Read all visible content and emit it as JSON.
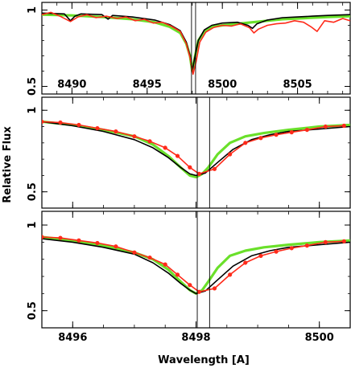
{
  "figure": {
    "ylabel": "Relative Flux",
    "xlabel": "Wavelength [A]"
  },
  "colors": {
    "black_series": "#000000",
    "red_series": "#ff2a1a",
    "green_series": "#6ae02a",
    "marker": "#ff2a1a",
    "guide_line": "#000000"
  },
  "chart_data": [
    {
      "type": "line",
      "panel": "top",
      "xlim": [
        8488.0,
        8508.5
      ],
      "ylim": [
        0.45,
        1.05
      ],
      "x_ticks": [
        8490,
        8495,
        8500,
        8505
      ],
      "x_tick_labels": [
        "8490",
        "8495",
        "8500",
        "8505"
      ],
      "x_tick_labels_inside": true,
      "y_ticks": [
        0.5,
        1
      ],
      "y_tick_labels": [
        "0.5",
        "1"
      ],
      "vlines": [
        8497.95,
        8498.22
      ],
      "series": [
        {
          "color_key": "green_series",
          "x": [
            8488.0,
            8490.0,
            8492.0,
            8494.0,
            8495.5,
            8496.5,
            8497.2,
            8497.6,
            8497.85,
            8498.0,
            8498.15,
            8498.4,
            8498.8,
            8499.3,
            8500.0,
            8501.0,
            8502.0,
            8503.0,
            8504.0,
            8505.0,
            8506.0,
            8507.0,
            8508.5
          ],
          "y": [
            0.97,
            0.965,
            0.955,
            0.94,
            0.92,
            0.89,
            0.85,
            0.78,
            0.7,
            0.6,
            0.68,
            0.8,
            0.86,
            0.89,
            0.9,
            0.91,
            0.92,
            0.93,
            0.94,
            0.945,
            0.95,
            0.955,
            0.96
          ]
        },
        {
          "color_key": "black_series",
          "x": [
            8488.0,
            8489.5,
            8489.9,
            8490.2,
            8490.6,
            8492.0,
            8492.4,
            8492.7,
            8494.0,
            8495.5,
            8496.5,
            8497.2,
            8497.6,
            8497.85,
            8498.0,
            8498.15,
            8498.4,
            8498.8,
            8499.3,
            8500.0,
            8501.0,
            8501.7,
            8502.0,
            8502.3,
            8503.0,
            8504.0,
            8505.0,
            8506.0,
            8507.0,
            8508.5
          ],
          "y": [
            0.98,
            0.975,
            0.93,
            0.96,
            0.975,
            0.97,
            0.94,
            0.965,
            0.955,
            0.935,
            0.905,
            0.865,
            0.79,
            0.7,
            0.6,
            0.68,
            0.8,
            0.87,
            0.9,
            0.915,
            0.92,
            0.9,
            0.88,
            0.91,
            0.935,
            0.95,
            0.955,
            0.96,
            0.965,
            0.97
          ]
        },
        {
          "color_key": "red_series",
          "x": [
            8488.0,
            8488.6,
            8489.2,
            8489.9,
            8490.4,
            8491.0,
            8491.6,
            8492.3,
            8493.0,
            8493.6,
            8494.2,
            8494.8,
            8495.4,
            8496.0,
            8496.6,
            8497.2,
            8497.6,
            8497.85,
            8498.05,
            8498.25,
            8498.5,
            8498.9,
            8499.4,
            8500.0,
            8500.6,
            8501.2,
            8501.8,
            8502.1,
            8502.4,
            8503.0,
            8503.6,
            8504.2,
            8504.8,
            8505.4,
            8505.9,
            8506.3,
            8506.8,
            8507.4,
            8508.0,
            8508.5
          ],
          "y": [
            0.97,
            0.985,
            0.96,
            0.925,
            0.955,
            0.97,
            0.95,
            0.96,
            0.945,
            0.955,
            0.93,
            0.94,
            0.915,
            0.92,
            0.895,
            0.86,
            0.78,
            0.69,
            0.58,
            0.66,
            0.79,
            0.855,
            0.885,
            0.9,
            0.895,
            0.91,
            0.885,
            0.85,
            0.875,
            0.9,
            0.91,
            0.915,
            0.93,
            0.92,
            0.89,
            0.86,
            0.93,
            0.92,
            0.945,
            0.93
          ]
        }
      ]
    },
    {
      "type": "line",
      "panel": "middle",
      "xlim": [
        8495.5,
        8500.5
      ],
      "ylim": [
        0.4,
        1.08
      ],
      "x_ticks": [
        8496,
        8498,
        8500
      ],
      "y_ticks": [
        0.5,
        1
      ],
      "y_tick_labels": [
        "0.5",
        "1"
      ],
      "vlines": [
        8498.02,
        8498.22
      ],
      "series": [
        {
          "color_key": "green_series",
          "x": [
            8495.5,
            8496.0,
            8496.5,
            8497.0,
            8497.3,
            8497.55,
            8497.75,
            8497.9,
            8498.0,
            8498.1,
            8498.2,
            8498.35,
            8498.55,
            8498.8,
            8499.1,
            8499.5,
            8500.0,
            8500.5
          ],
          "y": [
            0.93,
            0.91,
            0.88,
            0.84,
            0.79,
            0.72,
            0.65,
            0.6,
            0.59,
            0.61,
            0.65,
            0.73,
            0.8,
            0.84,
            0.86,
            0.88,
            0.9,
            0.91
          ]
        },
        {
          "color_key": "black_series",
          "x": [
            8495.5,
            8496.0,
            8496.5,
            8497.0,
            8497.3,
            8497.55,
            8497.75,
            8497.9,
            8498.0,
            8498.15,
            8498.35,
            8498.6,
            8498.9,
            8499.2,
            8499.5,
            8500.0,
            8500.5
          ],
          "y": [
            0.93,
            0.905,
            0.87,
            0.82,
            0.77,
            0.71,
            0.65,
            0.61,
            0.6,
            0.615,
            0.68,
            0.76,
            0.82,
            0.85,
            0.87,
            0.885,
            0.9
          ]
        },
        {
          "color_key": "red_series",
          "markers": true,
          "x": [
            8495.5,
            8495.8,
            8496.1,
            8496.4,
            8496.7,
            8497.0,
            8497.25,
            8497.5,
            8497.7,
            8497.9,
            8498.05,
            8498.3,
            8498.55,
            8498.8,
            8499.05,
            8499.3,
            8499.55,
            8499.8,
            8500.1,
            8500.4
          ],
          "y": [
            0.93,
            0.925,
            0.91,
            0.89,
            0.87,
            0.84,
            0.81,
            0.77,
            0.72,
            0.65,
            0.61,
            0.64,
            0.73,
            0.8,
            0.83,
            0.85,
            0.865,
            0.88,
            0.9,
            0.905
          ]
        }
      ]
    },
    {
      "type": "line",
      "panel": "bottom",
      "xlim": [
        8495.5,
        8500.5
      ],
      "ylim": [
        0.4,
        1.08
      ],
      "x_ticks": [
        8496,
        8498,
        8500
      ],
      "x_tick_labels": [
        "8496",
        "8498",
        "8500"
      ],
      "y_ticks": [
        0.5,
        1
      ],
      "y_tick_labels": [
        "0.5",
        "1"
      ],
      "vlines": [
        8498.02,
        8498.22
      ],
      "series": [
        {
          "color_key": "green_series",
          "x": [
            8495.5,
            8496.0,
            8496.5,
            8497.0,
            8497.3,
            8497.55,
            8497.75,
            8497.9,
            8498.0,
            8498.1,
            8498.2,
            8498.35,
            8498.55,
            8498.8,
            8499.1,
            8499.5,
            8500.0,
            8500.5
          ],
          "y": [
            0.93,
            0.91,
            0.88,
            0.84,
            0.8,
            0.74,
            0.67,
            0.62,
            0.6,
            0.62,
            0.67,
            0.75,
            0.82,
            0.85,
            0.87,
            0.885,
            0.9,
            0.91
          ]
        },
        {
          "color_key": "black_series",
          "x": [
            8495.5,
            8496.0,
            8496.5,
            8497.0,
            8497.3,
            8497.55,
            8497.75,
            8497.9,
            8498.0,
            8498.15,
            8498.35,
            8498.6,
            8498.9,
            8499.2,
            8499.5,
            8500.0,
            8500.5
          ],
          "y": [
            0.92,
            0.9,
            0.87,
            0.83,
            0.78,
            0.72,
            0.66,
            0.62,
            0.6,
            0.615,
            0.68,
            0.76,
            0.82,
            0.85,
            0.87,
            0.885,
            0.9
          ]
        },
        {
          "color_key": "red_series",
          "markers": true,
          "x": [
            8495.5,
            8495.8,
            8496.1,
            8496.4,
            8496.7,
            8497.0,
            8497.25,
            8497.5,
            8497.7,
            8497.9,
            8498.05,
            8498.3,
            8498.55,
            8498.8,
            8499.05,
            8499.3,
            8499.55,
            8499.8,
            8500.1,
            8500.4
          ],
          "y": [
            0.93,
            0.925,
            0.91,
            0.895,
            0.875,
            0.84,
            0.81,
            0.77,
            0.71,
            0.65,
            0.61,
            0.63,
            0.71,
            0.78,
            0.82,
            0.845,
            0.865,
            0.88,
            0.9,
            0.905
          ]
        }
      ]
    }
  ]
}
